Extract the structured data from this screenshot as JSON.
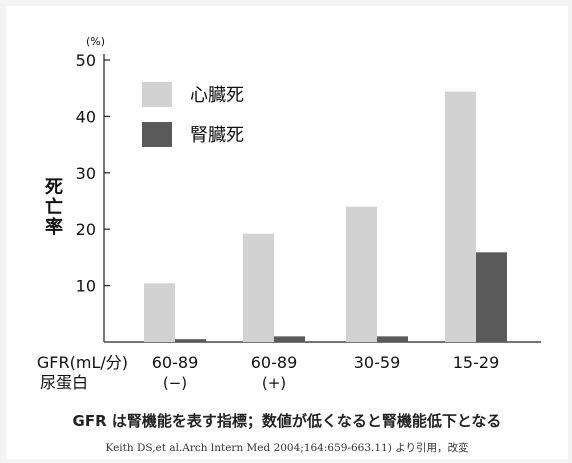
{
  "chart_data": {
    "type": "bar",
    "y_unit": "(%)",
    "ylabel": "死亡率",
    "yticks": [
      10,
      20,
      30,
      40,
      50
    ],
    "ylim": [
      0,
      50
    ],
    "x_row_labels": [
      "GFR(mL/分)",
      "尿蛋白"
    ],
    "categories": [
      {
        "gfr": "60-89",
        "protein": "(−)"
      },
      {
        "gfr": "60-89",
        "protein": "(+)"
      },
      {
        "gfr": "30-59",
        "protein": ""
      },
      {
        "gfr": "15-29",
        "protein": ""
      }
    ],
    "series": [
      {
        "name": "心臓死",
        "color": "#d2d2d2",
        "values": [
          10.4,
          19.2,
          24.0,
          44.4
        ]
      },
      {
        "name": "腎臓死",
        "color": "#5a5a5a",
        "values": [
          0.5,
          1.0,
          1.0,
          15.9
        ]
      }
    ],
    "legend_position": "top-left",
    "grid": false
  },
  "caption": "GFR は腎機能を表す指標；数値が低くなると腎機能低下となる",
  "source": "Keith DS,et al.Arch lntern Med 2004;164:659-663.11) より引用，改変"
}
